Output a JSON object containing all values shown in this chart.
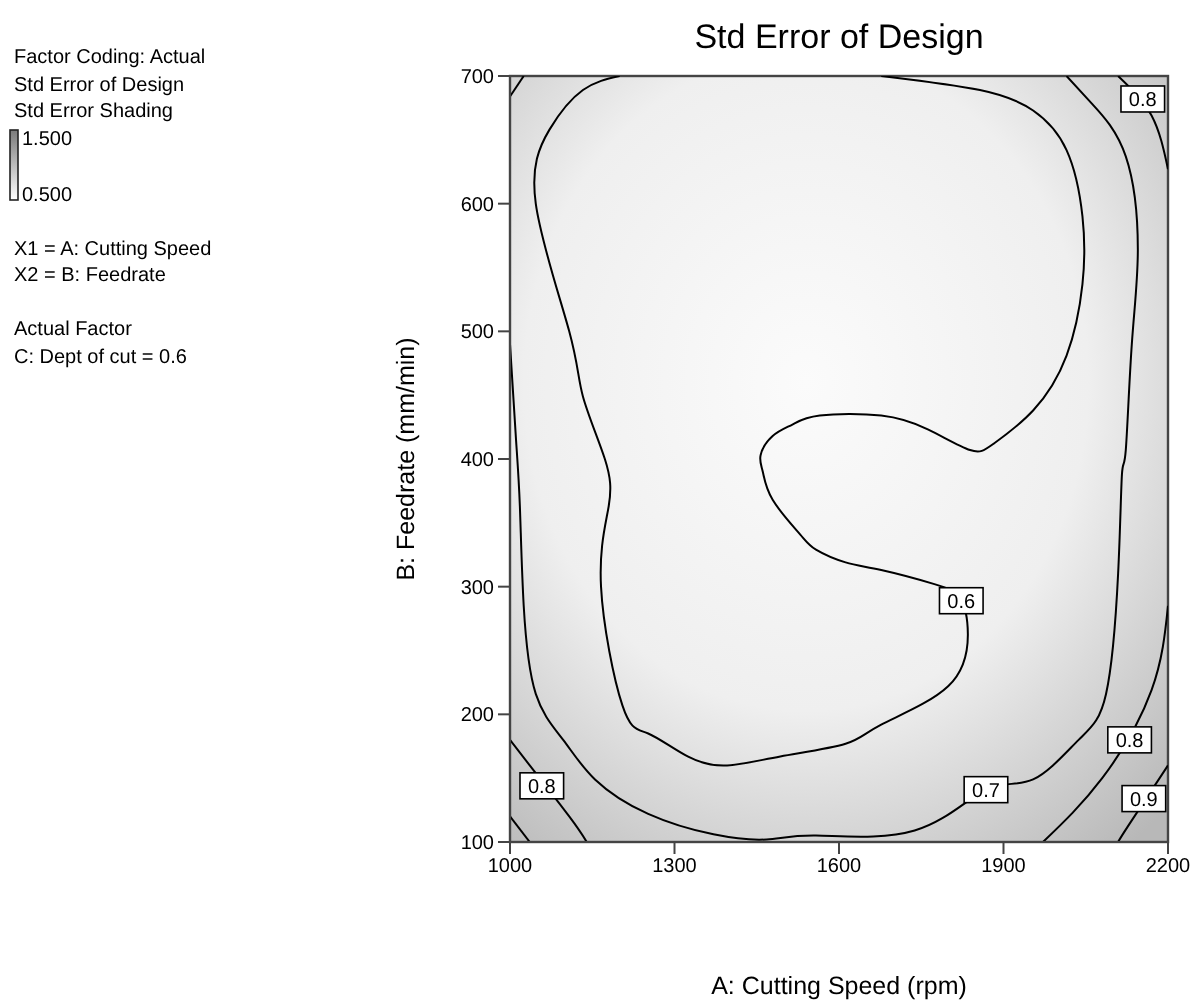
{
  "chart_data": {
    "type": "line",
    "title": "Std Error of Design",
    "xlabel": "A: Cutting Speed (rpm)",
    "ylabel": "B: Feedrate (mm/min)",
    "xlim": [
      1000,
      2200
    ],
    "xticks": [
      1000,
      1300,
      1600,
      1900,
      2200
    ],
    "ylim": [
      100,
      700
    ],
    "yticks": [
      100,
      200,
      300,
      400,
      500,
      600,
      700
    ],
    "annotations": [
      "Factor Coding: Actual",
      "Std Error of Design",
      "Std Error Shading",
      "1.500",
      "0.500",
      "X1 = A: Cutting Speed",
      "X2 = B: Feedrate",
      "Actual Factor",
      "C: Dept of cut = 0.6",
      {
        "text": "0.6",
        "x": 1823,
        "y": 289
      },
      {
        "text": "0.7",
        "x": 1868,
        "y": 141
      },
      {
        "text": "0.8",
        "x": 1058,
        "y": 144
      },
      {
        "text": "0.8",
        "x": 2130,
        "y": 180
      },
      {
        "text": "0.9",
        "x": 2156,
        "y": 134
      },
      {
        "text": "0.8",
        "x": 2154,
        "y": 682
      }
    ],
    "series": [
      {
        "color": "#000000",
        "x": [
          1200,
          1133,
          1072,
          1047,
          1108,
          1133,
          1173,
          1180,
          1166,
          1205,
          1252,
          1324,
          1396,
          1493,
          1612,
          1677,
          1799,
          1835,
          1821,
          1774,
          1677,
          1612,
          1558,
          1529,
          1479,
          1461,
          1457,
          1479,
          1515,
          1565,
          1677,
          1763,
          1839,
          1882,
          1954,
          2015,
          2044,
          2044,
          2015,
          1954,
          1857,
          1677
        ],
        "values": [
          700,
          689,
          658,
          600,
          500,
          449,
          400,
          363,
          300,
          207,
          185,
          167,
          160,
          167,
          177,
          192,
          222,
          263,
          291,
          302,
          313,
          319,
          329,
          341,
          368,
          390,
          403,
          418,
          427,
          434,
          434,
          423,
          407,
          412,
          438,
          481,
          537,
          590,
          642,
          673,
          689,
          700
        ]
      },
      {
        "color": "#000000",
        "x": [
          1000,
          1011,
          1018,
          1025,
          1047,
          1097,
          1155,
          1252,
          1371,
          1468,
          1558,
          1738,
          1868,
          1954,
          2037,
          2087,
          2109,
          2116,
          2123,
          2134,
          2145,
          2123,
          2062,
          2015
        ],
        "values": [
          490,
          415,
          363,
          285,
          216,
          180,
          149,
          122,
          106,
          102,
          105,
          109,
          141,
          149,
          180,
          216,
          310,
          388,
          407,
          490,
          564,
          637,
          678,
          700
        ]
      },
      {
        "color": "#000000",
        "x": [
          1000,
          1036,
          1108,
          1140
        ],
        "values": [
          180,
          160,
          120,
          100
        ]
      },
      {
        "color": "#000000",
        "x": [
          1000,
          1036
        ],
        "values": [
          120,
          100
        ]
      },
      {
        "color": "#000000",
        "x": [
          2200,
          2170,
          2080,
          1972
        ],
        "values": [
          285,
          219,
          150,
          100
        ]
      },
      {
        "color": "#000000",
        "x": [
          2200,
          2128,
          2109
        ],
        "values": [
          160,
          113,
          100
        ]
      },
      {
        "color": "#000000",
        "x": [
          2109,
          2170,
          2200
        ],
        "values": [
          700,
          669,
          627
        ]
      },
      {
        "color": "#000000",
        "x": [
          1000,
          1025
        ],
        "values": [
          684,
          700
        ]
      }
    ]
  }
}
